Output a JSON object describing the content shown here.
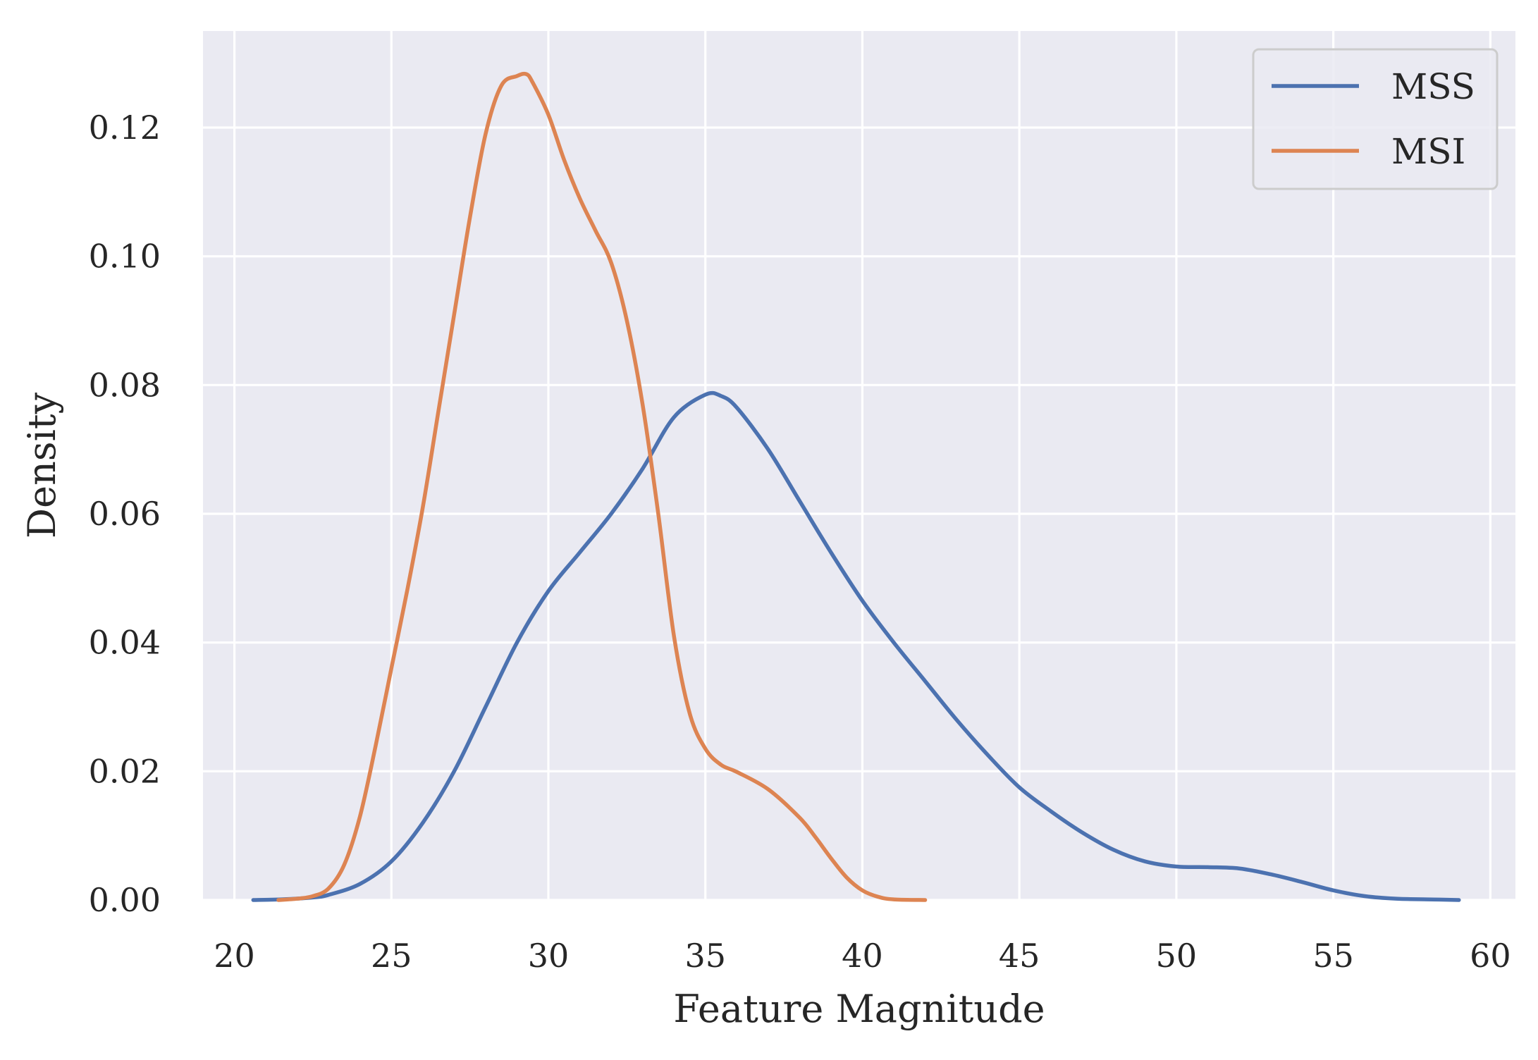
{
  "chart_data": {
    "type": "line",
    "title": "",
    "xlabel": "Feature Magnitude",
    "ylabel": "Density",
    "xlim": [
      19,
      60.8
    ],
    "ylim": [
      0,
      0.135
    ],
    "xticks": [
      20,
      25,
      30,
      35,
      40,
      45,
      50,
      55,
      60
    ],
    "xtick_labels": [
      "20",
      "25",
      "30",
      "35",
      "40",
      "45",
      "50",
      "55",
      "60"
    ],
    "yticks": [
      0.0,
      0.02,
      0.04,
      0.06,
      0.08,
      0.1,
      0.12
    ],
    "ytick_labels": [
      "0.00",
      "0.02",
      "0.04",
      "0.06",
      "0.08",
      "0.10",
      "0.12"
    ],
    "grid": true,
    "background": "#EAEAF2",
    "legend_position": "top-right",
    "series": [
      {
        "name": "MSS",
        "color": "#4C72B0",
        "x": [
          20.6,
          21.5,
          22.5,
          23.0,
          24.0,
          25.0,
          26.0,
          27.0,
          28.0,
          29.0,
          30.0,
          31.0,
          32.0,
          33.0,
          34.0,
          35.0,
          35.5,
          36.0,
          37.0,
          38.0,
          39.0,
          40.0,
          41.0,
          42.0,
          43.0,
          44.0,
          45.0,
          46.0,
          47.0,
          48.0,
          49.0,
          50.0,
          51.0,
          52.0,
          53.0,
          54.0,
          55.0,
          56.0,
          57.0,
          58.0,
          59.0
        ],
        "y": [
          0.0,
          0.0001,
          0.0004,
          0.0008,
          0.0025,
          0.006,
          0.012,
          0.02,
          0.03,
          0.04,
          0.048,
          0.054,
          0.06,
          0.067,
          0.075,
          0.0785,
          0.0783,
          0.0765,
          0.07,
          0.062,
          0.054,
          0.0465,
          0.04,
          0.034,
          0.028,
          0.0225,
          0.0175,
          0.0138,
          0.0105,
          0.0078,
          0.006,
          0.0052,
          0.0051,
          0.0049,
          0.004,
          0.0028,
          0.0015,
          0.0006,
          0.0002,
          0.0001,
          0.0
        ]
      },
      {
        "name": "MSI",
        "color": "#DD8452",
        "x": [
          21.4,
          22.0,
          22.5,
          23.0,
          23.5,
          24.0,
          24.5,
          25.0,
          25.5,
          26.0,
          26.5,
          27.0,
          27.5,
          28.0,
          28.5,
          29.0,
          29.3,
          29.5,
          30.0,
          30.5,
          31.0,
          31.5,
          32.0,
          32.5,
          33.0,
          33.5,
          34.0,
          34.5,
          35.0,
          35.5,
          36.0,
          37.0,
          38.0,
          38.5,
          39.0,
          39.5,
          40.0,
          40.5,
          41.0,
          42.0
        ],
        "y": [
          0.0,
          0.0002,
          0.0006,
          0.0018,
          0.0055,
          0.013,
          0.024,
          0.036,
          0.048,
          0.061,
          0.076,
          0.091,
          0.106,
          0.119,
          0.1265,
          0.128,
          0.1283,
          0.127,
          0.122,
          0.115,
          0.109,
          0.104,
          0.099,
          0.09,
          0.077,
          0.06,
          0.041,
          0.029,
          0.0235,
          0.021,
          0.0199,
          0.0172,
          0.0128,
          0.0098,
          0.0065,
          0.0035,
          0.0015,
          0.0005,
          0.0001,
          0.0
        ]
      }
    ]
  }
}
